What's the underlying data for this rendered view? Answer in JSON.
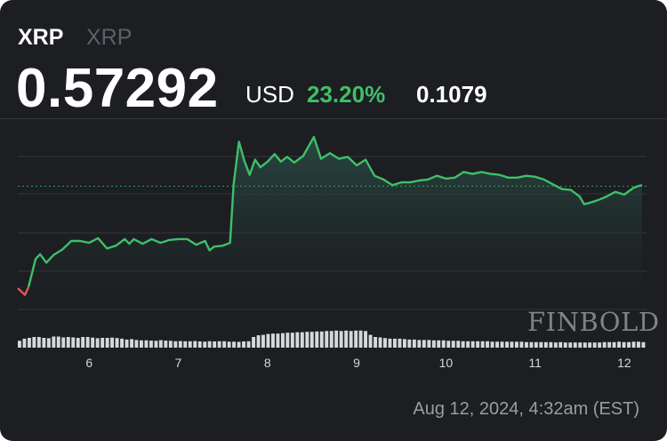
{
  "header": {
    "symbol": "XRP",
    "symbol_sub": "XRP",
    "price": "0.57292",
    "currency": "USD",
    "change_percent": "23.20%",
    "change_abs": "0.1079"
  },
  "timestamp": "Aug 12, 2024, 4:32am (EST)",
  "watermark": "FINBOLD",
  "colors": {
    "background": "#1c1e22",
    "up": "#3fbf68",
    "down": "#e3555a",
    "area_fill": "#2a4a44",
    "volume": "#d7d8da",
    "grid": "#34373d"
  },
  "chart_data": {
    "type": "area",
    "x_ticks": [
      "6",
      "7",
      "8",
      "9",
      "10",
      "11",
      "12"
    ],
    "x_range": [
      5.2,
      12.25
    ],
    "y_range": [
      0.4,
      0.64
    ],
    "reference_line": 0.57,
    "price_series": [
      [
        5.2,
        0.462
      ],
      [
        5.28,
        0.455
      ],
      [
        5.32,
        0.463
      ],
      [
        5.4,
        0.493
      ],
      [
        5.45,
        0.498
      ],
      [
        5.52,
        0.489
      ],
      [
        5.6,
        0.497
      ],
      [
        5.7,
        0.503
      ],
      [
        5.8,
        0.512
      ],
      [
        5.9,
        0.512
      ],
      [
        6.0,
        0.51
      ],
      [
        6.1,
        0.515
      ],
      [
        6.2,
        0.504
      ],
      [
        6.3,
        0.507
      ],
      [
        6.4,
        0.514
      ],
      [
        6.45,
        0.509
      ],
      [
        6.5,
        0.514
      ],
      [
        6.6,
        0.509
      ],
      [
        6.7,
        0.514
      ],
      [
        6.8,
        0.51
      ],
      [
        6.9,
        0.513
      ],
      [
        7.0,
        0.514
      ],
      [
        7.1,
        0.514
      ],
      [
        7.2,
        0.508
      ],
      [
        7.3,
        0.512
      ],
      [
        7.35,
        0.502
      ],
      [
        7.4,
        0.506
      ],
      [
        7.5,
        0.507
      ],
      [
        7.58,
        0.51
      ],
      [
        7.62,
        0.572
      ],
      [
        7.68,
        0.617
      ],
      [
        7.74,
        0.597
      ],
      [
        7.8,
        0.582
      ],
      [
        7.86,
        0.598
      ],
      [
        7.92,
        0.59
      ],
      [
        8.0,
        0.596
      ],
      [
        8.08,
        0.604
      ],
      [
        8.15,
        0.596
      ],
      [
        8.22,
        0.601
      ],
      [
        8.3,
        0.595
      ],
      [
        8.4,
        0.602
      ],
      [
        8.52,
        0.622
      ],
      [
        8.6,
        0.599
      ],
      [
        8.7,
        0.605
      ],
      [
        8.8,
        0.599
      ],
      [
        8.9,
        0.601
      ],
      [
        9.0,
        0.592
      ],
      [
        9.1,
        0.598
      ],
      [
        9.2,
        0.581
      ],
      [
        9.3,
        0.577
      ],
      [
        9.4,
        0.571
      ],
      [
        9.5,
        0.574
      ],
      [
        9.6,
        0.574
      ],
      [
        9.7,
        0.576
      ],
      [
        9.8,
        0.577
      ],
      [
        9.9,
        0.581
      ],
      [
        10.0,
        0.578
      ],
      [
        10.1,
        0.579
      ],
      [
        10.2,
        0.585
      ],
      [
        10.3,
        0.583
      ],
      [
        10.4,
        0.585
      ],
      [
        10.5,
        0.583
      ],
      [
        10.6,
        0.582
      ],
      [
        10.7,
        0.579
      ],
      [
        10.8,
        0.579
      ],
      [
        10.9,
        0.581
      ],
      [
        11.0,
        0.58
      ],
      [
        11.1,
        0.577
      ],
      [
        11.2,
        0.572
      ],
      [
        11.3,
        0.567
      ],
      [
        11.4,
        0.566
      ],
      [
        11.5,
        0.559
      ],
      [
        11.55,
        0.551
      ],
      [
        11.6,
        0.552
      ],
      [
        11.7,
        0.555
      ],
      [
        11.8,
        0.559
      ],
      [
        11.9,
        0.564
      ],
      [
        12.0,
        0.561
      ],
      [
        12.1,
        0.568
      ],
      [
        12.15,
        0.57
      ],
      [
        12.2,
        0.571
      ]
    ],
    "volume_levels": [
      0.32,
      0.42,
      0.46,
      0.5,
      0.5,
      0.46,
      0.44,
      0.52,
      0.52,
      0.48,
      0.5,
      0.48,
      0.46,
      0.5,
      0.5,
      0.47,
      0.44,
      0.46,
      0.46,
      0.47,
      0.45,
      0.42,
      0.38,
      0.4,
      0.36,
      0.34,
      0.34,
      0.33,
      0.32,
      0.35,
      0.33,
      0.32,
      0.3,
      0.31,
      0.3,
      0.3,
      0.31,
      0.29,
      0.28,
      0.3,
      0.29,
      0.3,
      0.3,
      0.28,
      0.28,
      0.27,
      0.29,
      0.3,
      0.5,
      0.58,
      0.6,
      0.64,
      0.66,
      0.66,
      0.68,
      0.7,
      0.7,
      0.72,
      0.72,
      0.74,
      0.74,
      0.76,
      0.76,
      0.78,
      0.78,
      0.8,
      0.78,
      0.8,
      0.78,
      0.8,
      0.8,
      0.78,
      0.6,
      0.5,
      0.48,
      0.45,
      0.42,
      0.42,
      0.42,
      0.4,
      0.38,
      0.38,
      0.36,
      0.36,
      0.36,
      0.34,
      0.34,
      0.34,
      0.32,
      0.32,
      0.32,
      0.3,
      0.3,
      0.3,
      0.3,
      0.3,
      0.3,
      0.28,
      0.28,
      0.28,
      0.28,
      0.28,
      0.28,
      0.28,
      0.26,
      0.26,
      0.26,
      0.26,
      0.26,
      0.26,
      0.24,
      0.26,
      0.24,
      0.24,
      0.24,
      0.24,
      0.24,
      0.24,
      0.24,
      0.24,
      0.26,
      0.26,
      0.26,
      0.28,
      0.26,
      0.26,
      0.28,
      0.28,
      0.26
    ]
  }
}
